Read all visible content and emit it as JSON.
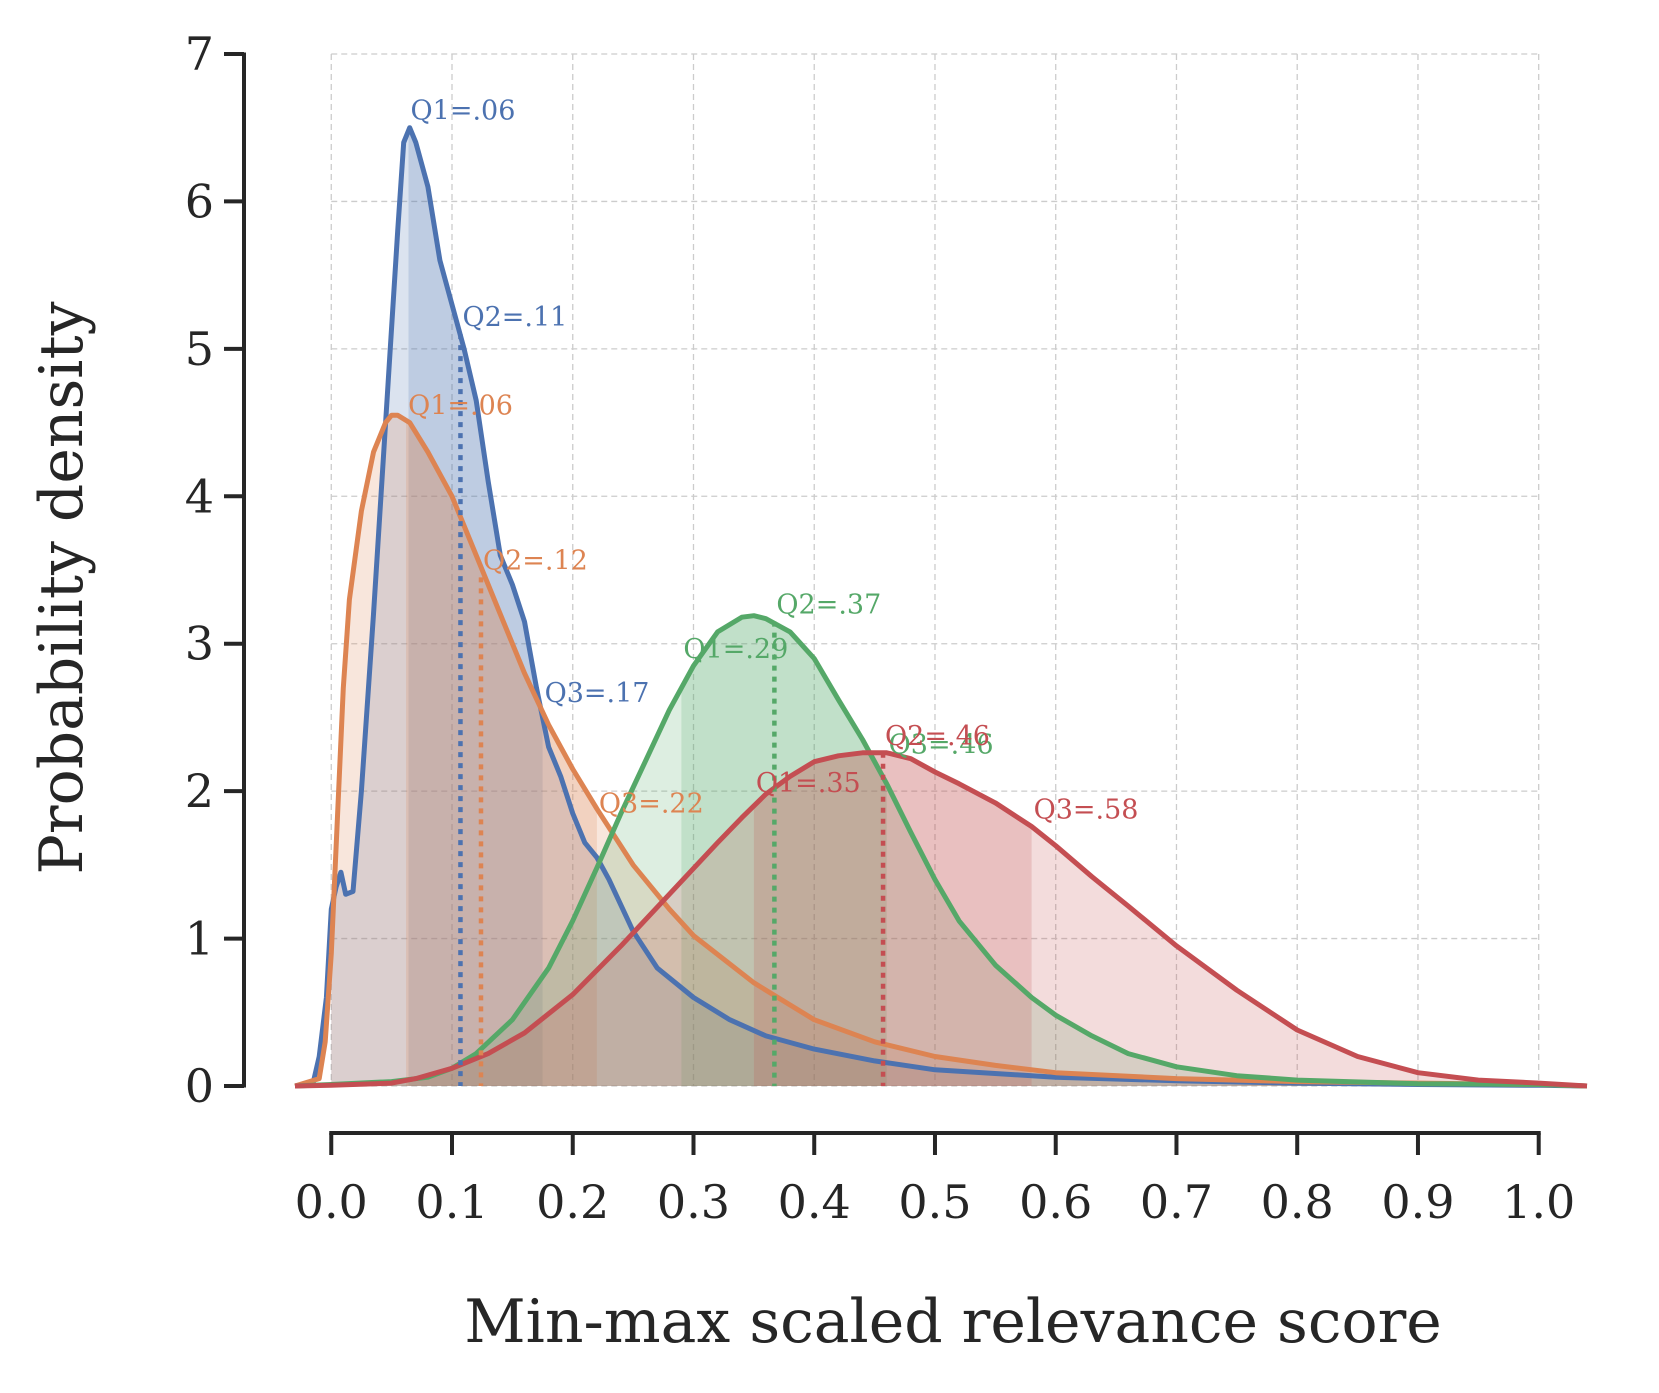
{
  "chart_data": {
    "type": "area",
    "title": "",
    "xlabel": "Min-max scaled relevance score",
    "ylabel": "Probability density",
    "xlim": [
      -0.035,
      1.04
    ],
    "ylim": [
      0,
      7
    ],
    "x_ticks": [
      "0.0",
      "0.1",
      "0.2",
      "0.3",
      "0.4",
      "0.5",
      "0.6",
      "0.7",
      "0.8",
      "0.9",
      "1.0"
    ],
    "y_ticks": [
      "0",
      "1",
      "2",
      "3",
      "4",
      "5",
      "6",
      "7"
    ],
    "grid": true,
    "legend": "none",
    "series": [
      {
        "name": "series-blue",
        "color": "#4C72B0",
        "points": [
          [
            -0.03,
            0
          ],
          [
            -0.015,
            0.02
          ],
          [
            -0.01,
            0.2
          ],
          [
            -0.004,
            0.6
          ],
          [
            0,
            1.2
          ],
          [
            0.004,
            1.35
          ],
          [
            0.008,
            1.45
          ],
          [
            0.012,
            1.3
          ],
          [
            0.018,
            1.32
          ],
          [
            0.025,
            2.0
          ],
          [
            0.035,
            3.2
          ],
          [
            0.045,
            4.5
          ],
          [
            0.055,
            5.8
          ],
          [
            0.06,
            6.4
          ],
          [
            0.065,
            6.5
          ],
          [
            0.07,
            6.4
          ],
          [
            0.08,
            6.1
          ],
          [
            0.09,
            5.6
          ],
          [
            0.1,
            5.3
          ],
          [
            0.11,
            5.0
          ],
          [
            0.12,
            4.65
          ],
          [
            0.13,
            4.1
          ],
          [
            0.14,
            3.6
          ],
          [
            0.15,
            3.4
          ],
          [
            0.16,
            3.15
          ],
          [
            0.17,
            2.7
          ],
          [
            0.18,
            2.3
          ],
          [
            0.19,
            2.1
          ],
          [
            0.2,
            1.85
          ],
          [
            0.21,
            1.65
          ],
          [
            0.22,
            1.55
          ],
          [
            0.23,
            1.4
          ],
          [
            0.25,
            1.05
          ],
          [
            0.27,
            0.8
          ],
          [
            0.3,
            0.6
          ],
          [
            0.33,
            0.45
          ],
          [
            0.36,
            0.34
          ],
          [
            0.4,
            0.25
          ],
          [
            0.45,
            0.17
          ],
          [
            0.5,
            0.11
          ],
          [
            0.6,
            0.06
          ],
          [
            0.7,
            0.035
          ],
          [
            0.8,
            0.02
          ],
          [
            0.9,
            0.01
          ],
          [
            1.0,
            0.005
          ],
          [
            1.04,
            0
          ]
        ],
        "quartiles": [
          {
            "label": "Q1=.06",
            "x": 0.064,
            "y": 6.5
          },
          {
            "label": "Q2=.11",
            "x": 0.107,
            "y": 5.1
          },
          {
            "label": "Q3=.17",
            "x": 0.175,
            "y": 2.55
          }
        ]
      },
      {
        "name": "series-orange",
        "color": "#DD8452",
        "points": [
          [
            -0.03,
            0
          ],
          [
            -0.01,
            0.05
          ],
          [
            -0.005,
            0.3
          ],
          [
            0,
            0.9
          ],
          [
            0.005,
            1.8
          ],
          [
            0.01,
            2.7
          ],
          [
            0.015,
            3.3
          ],
          [
            0.025,
            3.9
          ],
          [
            0.035,
            4.3
          ],
          [
            0.045,
            4.5
          ],
          [
            0.05,
            4.55
          ],
          [
            0.055,
            4.55
          ],
          [
            0.065,
            4.5
          ],
          [
            0.08,
            4.3
          ],
          [
            0.1,
            4.0
          ],
          [
            0.12,
            3.6
          ],
          [
            0.14,
            3.2
          ],
          [
            0.16,
            2.8
          ],
          [
            0.18,
            2.45
          ],
          [
            0.2,
            2.15
          ],
          [
            0.22,
            1.88
          ],
          [
            0.25,
            1.5
          ],
          [
            0.28,
            1.2
          ],
          [
            0.3,
            1.02
          ],
          [
            0.35,
            0.7
          ],
          [
            0.4,
            0.45
          ],
          [
            0.45,
            0.3
          ],
          [
            0.5,
            0.2
          ],
          [
            0.55,
            0.14
          ],
          [
            0.6,
            0.09
          ],
          [
            0.7,
            0.05
          ],
          [
            0.8,
            0.03
          ],
          [
            0.9,
            0.02
          ],
          [
            1.0,
            0.01
          ],
          [
            1.04,
            0
          ]
        ],
        "quartiles": [
          {
            "label": "Q1=.06",
            "x": 0.062,
            "y": 4.5
          },
          {
            "label": "Q2=.12",
            "x": 0.124,
            "y": 3.45
          },
          {
            "label": "Q3=.22",
            "x": 0.22,
            "y": 1.8
          }
        ]
      },
      {
        "name": "series-green",
        "color": "#55A868",
        "points": [
          [
            -0.03,
            0
          ],
          [
            0,
            0.01
          ],
          [
            0.05,
            0.03
          ],
          [
            0.08,
            0.06
          ],
          [
            0.1,
            0.12
          ],
          [
            0.12,
            0.22
          ],
          [
            0.15,
            0.45
          ],
          [
            0.18,
            0.8
          ],
          [
            0.2,
            1.12
          ],
          [
            0.22,
            1.48
          ],
          [
            0.24,
            1.85
          ],
          [
            0.26,
            2.2
          ],
          [
            0.28,
            2.55
          ],
          [
            0.3,
            2.85
          ],
          [
            0.32,
            3.08
          ],
          [
            0.34,
            3.18
          ],
          [
            0.35,
            3.19
          ],
          [
            0.36,
            3.17
          ],
          [
            0.38,
            3.08
          ],
          [
            0.4,
            2.9
          ],
          [
            0.42,
            2.62
          ],
          [
            0.44,
            2.35
          ],
          [
            0.46,
            2.05
          ],
          [
            0.48,
            1.72
          ],
          [
            0.5,
            1.4
          ],
          [
            0.52,
            1.12
          ],
          [
            0.55,
            0.82
          ],
          [
            0.58,
            0.6
          ],
          [
            0.6,
            0.48
          ],
          [
            0.63,
            0.34
          ],
          [
            0.66,
            0.22
          ],
          [
            0.7,
            0.13
          ],
          [
            0.75,
            0.07
          ],
          [
            0.8,
            0.04
          ],
          [
            0.9,
            0.015
          ],
          [
            1.0,
            0.01
          ],
          [
            1.04,
            0
          ]
        ],
        "quartiles": [
          {
            "label": "Q1=.29",
            "x": 0.29,
            "y": 2.85
          },
          {
            "label": "Q2=.37",
            "x": 0.367,
            "y": 3.15
          },
          {
            "label": "Q3=.46",
            "x": 0.46,
            "y": 2.2
          }
        ]
      },
      {
        "name": "series-red",
        "color": "#C44E52",
        "points": [
          [
            -0.03,
            0
          ],
          [
            0,
            0.005
          ],
          [
            0.05,
            0.02
          ],
          [
            0.07,
            0.05
          ],
          [
            0.1,
            0.12
          ],
          [
            0.13,
            0.22
          ],
          [
            0.16,
            0.36
          ],
          [
            0.2,
            0.62
          ],
          [
            0.24,
            0.95
          ],
          [
            0.28,
            1.3
          ],
          [
            0.32,
            1.65
          ],
          [
            0.34,
            1.82
          ],
          [
            0.36,
            1.98
          ],
          [
            0.38,
            2.1
          ],
          [
            0.4,
            2.2
          ],
          [
            0.42,
            2.24
          ],
          [
            0.44,
            2.26
          ],
          [
            0.46,
            2.26
          ],
          [
            0.48,
            2.22
          ],
          [
            0.5,
            2.13
          ],
          [
            0.52,
            2.05
          ],
          [
            0.55,
            1.92
          ],
          [
            0.58,
            1.76
          ],
          [
            0.6,
            1.63
          ],
          [
            0.63,
            1.42
          ],
          [
            0.66,
            1.22
          ],
          [
            0.7,
            0.95
          ],
          [
            0.75,
            0.65
          ],
          [
            0.8,
            0.38
          ],
          [
            0.85,
            0.2
          ],
          [
            0.9,
            0.09
          ],
          [
            0.95,
            0.04
          ],
          [
            1.0,
            0.02
          ],
          [
            1.04,
            0
          ]
        ],
        "quartiles": [
          {
            "label": "Q1=.35",
            "x": 0.35,
            "y": 1.94
          },
          {
            "label": "Q2=.46",
            "x": 0.457,
            "y": 2.26
          },
          {
            "label": "Q3=.58",
            "x": 0.58,
            "y": 1.76
          }
        ]
      }
    ]
  }
}
